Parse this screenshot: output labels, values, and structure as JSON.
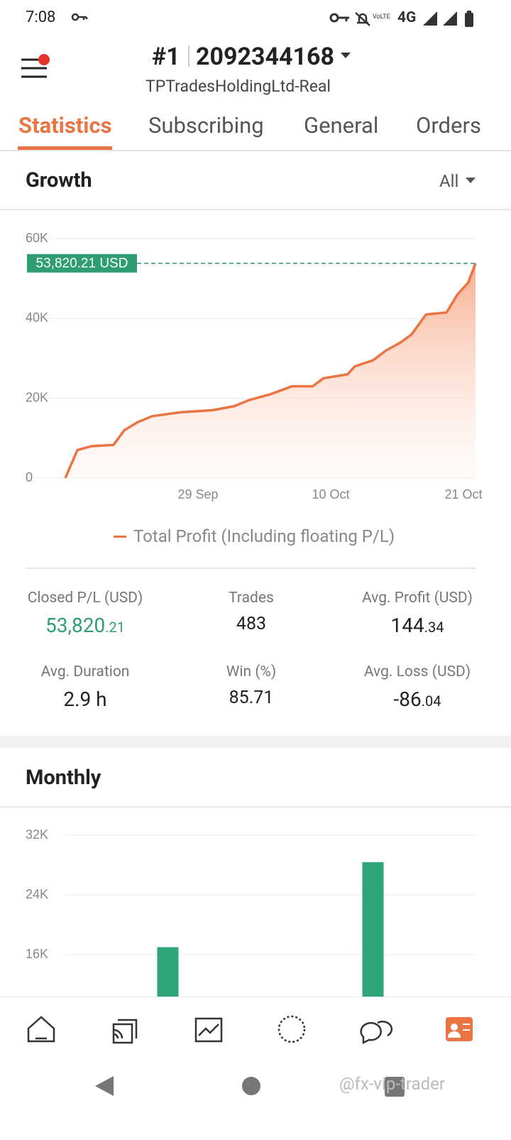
{
  "status_bar": {
    "time": "7:08",
    "network": "4G"
  },
  "header": {
    "rank": "#1",
    "account": "2092344168",
    "server": "TPTradesHoldingLtd-Real"
  },
  "tabs": [
    "Statistics",
    "Subscribing",
    "General",
    "Orders"
  ],
  "growth": {
    "title": "Growth",
    "filter": "All",
    "type": "line",
    "x": [
      0,
      1,
      2.2,
      4,
      4.9,
      6,
      7.2,
      9.6,
      12.2,
      14,
      15.2,
      17,
      18.8,
      20.5,
      21.4,
      23.4,
      24,
      25.5,
      26.6,
      27.8,
      28.7,
      29.9,
      31.6,
      32.5,
      33.4,
      34
    ],
    "series": [
      {
        "name": "Total Profit (Including floating P/L)",
        "color": "#ea7443",
        "values": [
          0,
          7000,
          8000,
          8300,
          12000,
          14000,
          15500,
          16500,
          17000,
          18000,
          19500,
          21000,
          23000,
          23000,
          25000,
          26000,
          28000,
          29500,
          32000,
          34000,
          36000,
          41000,
          41500,
          46000,
          49000,
          53820.21
        ]
      }
    ],
    "xlim": [
      0,
      34
    ],
    "xticks": [
      {
        "value": 11,
        "label": "29 Sep"
      },
      {
        "value": 22,
        "label": "10 Oct"
      },
      {
        "value": 33,
        "label": "21 Oct"
      }
    ],
    "ylim": [
      0,
      60000
    ],
    "yticks": [
      0,
      {
        "value": 20000,
        "label": "20K"
      },
      {
        "value": 40000,
        "label": "40K"
      },
      {
        "value": 60000,
        "label": "60K"
      }
    ],
    "grid": true,
    "marker_value": 53820.21,
    "marker_label": "53,820.21 USD",
    "marker_color": "#2e9e72"
  },
  "stats": [
    {
      "label": "Closed P/L (USD)",
      "main": "53,820",
      "frac": ".21"
    },
    {
      "label": "Trades",
      "main": "483"
    },
    {
      "label": "Avg. Profit (USD)",
      "main": "144",
      "frac": ".34"
    },
    {
      "label": "Avg. Duration",
      "main": "2.9 h"
    },
    {
      "label": "Win (%)",
      "main": "85.71"
    },
    {
      "label": "Avg. Loss (USD)",
      "main": "-86",
      "frac": ".04"
    }
  ],
  "monthly": {
    "title": "Monthly",
    "type": "bar",
    "categories": [
      null,
      null
    ],
    "values": [
      17000,
      28400
    ],
    "color": "#2ea579",
    "ylim": [
      0,
      32000
    ],
    "yticks": [
      {
        "value": 16000,
        "label": "16K"
      },
      {
        "value": 24000,
        "label": "24K"
      },
      {
        "value": 32000,
        "label": "32K"
      }
    ],
    "grid": true
  },
  "watermark": "@fx-vip-trader"
}
